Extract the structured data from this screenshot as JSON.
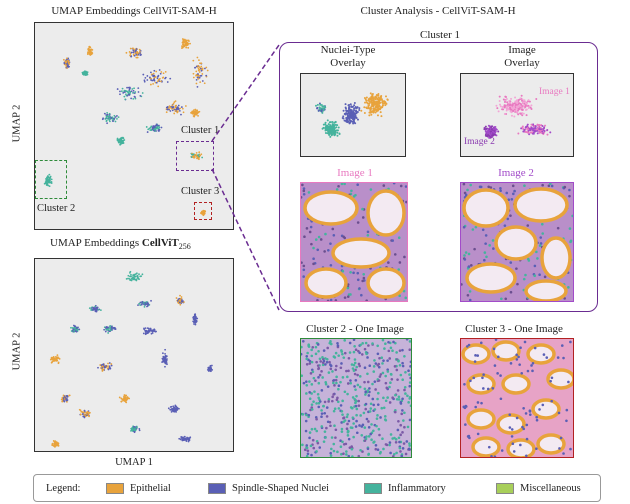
{
  "left_top": {
    "title": "UMAP Embeddings CellViT-SAM-H"
  },
  "left_bottom": {
    "title_main": "UMAP Embeddings ",
    "title_model": "CellViT",
    "title_sub": "256"
  },
  "axes": {
    "y1": "UMAP 2",
    "y2": "UMAP 2",
    "x": "UMAP 1"
  },
  "clusters": {
    "c1": "Cluster 1",
    "c2": "Cluster 2",
    "c3": "Cluster 3"
  },
  "right": {
    "title": "Cluster Analysis - CellViT-SAM-H",
    "cluster1_title": "Cluster 1",
    "nuclei_overlay_l1": "Nuclei-Type",
    "nuclei_overlay_l2": "Overlay",
    "image_overlay_l1": "Image",
    "image_overlay_l2": "Overlay",
    "overlay_image1": "Image 1",
    "overlay_image2": "Image 2",
    "image1": "Image 1",
    "image2": "Image 2",
    "c2_one": "Cluster 2 - One Image",
    "c3_one": "Cluster 3 - One Image"
  },
  "legend": {
    "label": "Legend:",
    "items": [
      {
        "name": "Epithelial",
        "color": "#e8a33c"
      },
      {
        "name": "Spindle-Shaped Nuclei",
        "color": "#5a5fb5"
      },
      {
        "name": "Inflammatory",
        "color": "#45b39d"
      },
      {
        "name": "Miscellaneous",
        "color": "#a8cf5a"
      }
    ]
  },
  "colors": {
    "cluster1": "#6a2c91",
    "cluster2": "#2e8b3a",
    "cluster3": "#b22222",
    "image1": "#e879c0",
    "image2": "#a24bc9"
  }
}
